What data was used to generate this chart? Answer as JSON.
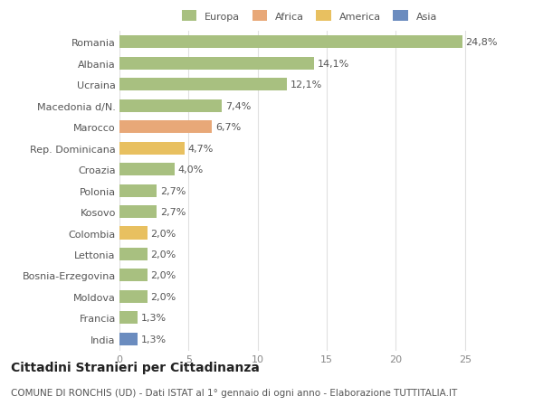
{
  "categories": [
    "India",
    "Francia",
    "Moldova",
    "Bosnia-Erzegovina",
    "Lettonia",
    "Colombia",
    "Kosovo",
    "Polonia",
    "Croazia",
    "Rep. Dominicana",
    "Marocco",
    "Macedonia d/N.",
    "Ucraina",
    "Albania",
    "Romania"
  ],
  "values": [
    1.3,
    1.3,
    2.0,
    2.0,
    2.0,
    2.0,
    2.7,
    2.7,
    4.0,
    4.7,
    6.7,
    7.4,
    12.1,
    14.1,
    24.8
  ],
  "colors": [
    "#6b8cbf",
    "#a8c080",
    "#a8c080",
    "#a8c080",
    "#a8c080",
    "#e8c060",
    "#a8c080",
    "#a8c080",
    "#a8c080",
    "#e8c060",
    "#e8a878",
    "#a8c080",
    "#a8c080",
    "#a8c080",
    "#a8c080"
  ],
  "labels": [
    "1,3%",
    "1,3%",
    "2,0%",
    "2,0%",
    "2,0%",
    "2,0%",
    "2,7%",
    "2,7%",
    "4,0%",
    "4,7%",
    "6,7%",
    "7,4%",
    "12,1%",
    "14,1%",
    "24,8%"
  ],
  "legend_labels": [
    "Europa",
    "Africa",
    "America",
    "Asia"
  ],
  "legend_colors": [
    "#a8c080",
    "#e8a878",
    "#e8c060",
    "#6b8cbf"
  ],
  "title": "Cittadini Stranieri per Cittadinanza",
  "subtitle": "COMUNE DI RONCHIS (UD) - Dati ISTAT al 1° gennaio di ogni anno - Elaborazione TUTTITALIA.IT",
  "xlim": [
    0,
    27.5
  ],
  "xticks": [
    0,
    5,
    10,
    15,
    20,
    25
  ],
  "background_color": "#ffffff",
  "grid_color": "#e0e0e0",
  "bar_height": 0.6,
  "label_fontsize": 8,
  "tick_fontsize": 8,
  "title_fontsize": 10,
  "subtitle_fontsize": 7.5
}
